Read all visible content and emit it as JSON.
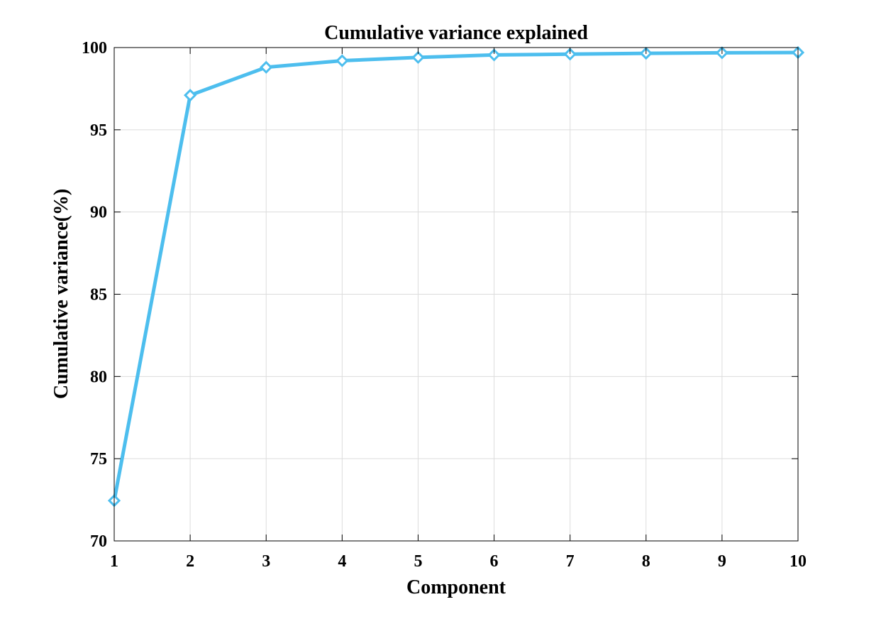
{
  "chart_data": {
    "type": "line",
    "title": "Cumulative variance explained",
    "xlabel": "Component",
    "ylabel": "Cumulative variance(%)",
    "x": [
      1,
      2,
      3,
      4,
      5,
      6,
      7,
      8,
      9,
      10
    ],
    "values": [
      72.45,
      97.1,
      98.8,
      99.2,
      99.4,
      99.55,
      99.6,
      99.65,
      99.68,
      99.7
    ],
    "xlim": [
      1,
      10
    ],
    "ylim": [
      70,
      100
    ],
    "xticks": [
      "1",
      "2",
      "3",
      "4",
      "5",
      "6",
      "7",
      "8",
      "9",
      "10"
    ],
    "yticks": [
      "70",
      "75",
      "80",
      "85",
      "90",
      "95",
      "100"
    ],
    "grid": true,
    "marker": "diamond",
    "line_color": "#4DBEEE",
    "grid_color": "#dcdcdc"
  }
}
